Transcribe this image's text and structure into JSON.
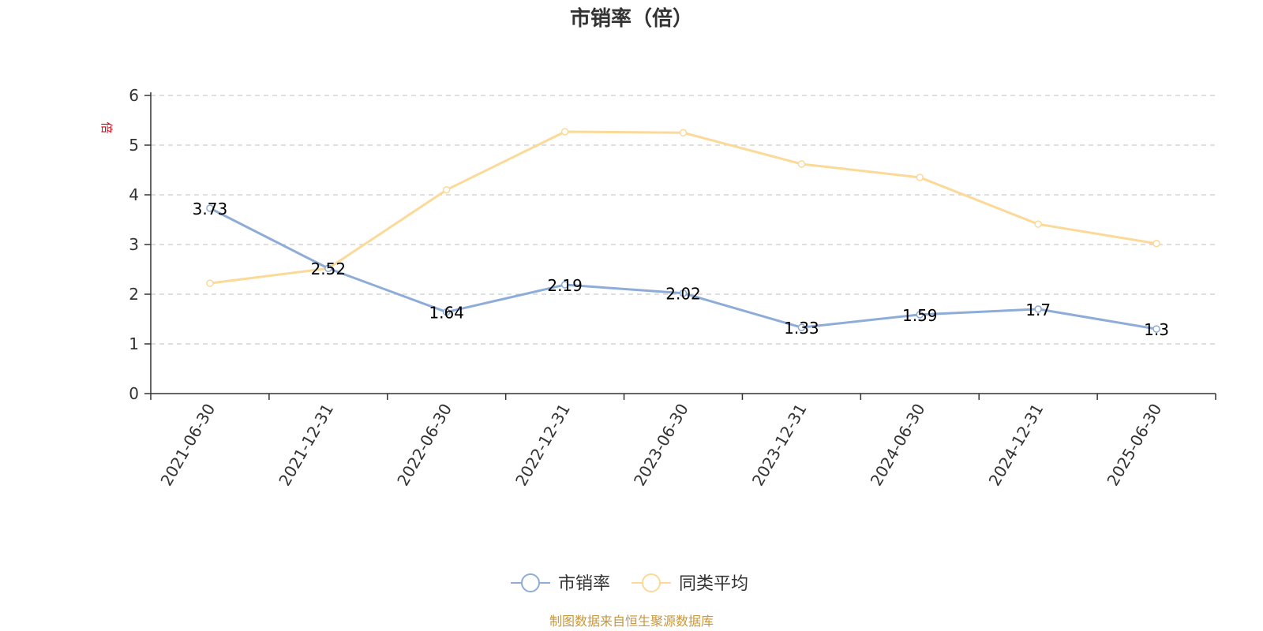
{
  "chart_data": {
    "type": "line",
    "title": "市销率（倍）",
    "ylabel": "倍",
    "xlabel": "",
    "categories": [
      "2021-06-30",
      "2021-12-31",
      "2022-06-30",
      "2022-12-31",
      "2023-06-30",
      "2023-12-31",
      "2024-06-30",
      "2024-12-31",
      "2025-06-30"
    ],
    "ylim": [
      0,
      6
    ],
    "yticks": [
      0,
      1,
      2,
      3,
      4,
      5,
      6
    ],
    "grid": true,
    "legend_position": "bottom",
    "series": [
      {
        "name": "市销率",
        "color": "#8eacd8",
        "values": [
          3.73,
          2.52,
          1.64,
          2.19,
          2.02,
          1.33,
          1.59,
          1.7,
          1.3
        ],
        "labels": [
          "3.73",
          "2.52",
          "1.64",
          "2.19",
          "2.02",
          "1.33",
          "1.59",
          "1.7",
          "1.3"
        ]
      },
      {
        "name": "同类平均",
        "color": "#fbd998",
        "values": [
          2.22,
          2.52,
          4.1,
          5.27,
          5.25,
          4.62,
          4.35,
          3.41,
          3.02
        ]
      }
    ],
    "source": "制图数据来自恒生聚源数据库"
  },
  "colors": {
    "axis": "#333333",
    "grid": "#cccccc",
    "unit": "#e60012",
    "source": "#c8963c"
  }
}
